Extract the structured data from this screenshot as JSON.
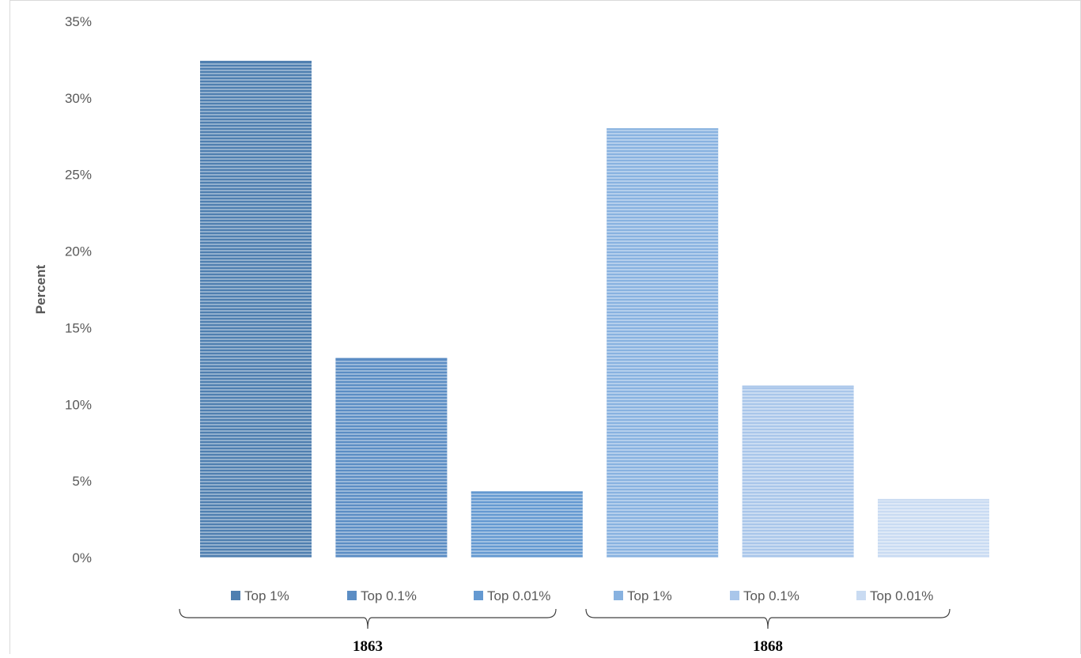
{
  "chart_data": {
    "type": "bar",
    "title": "",
    "xlabel": "",
    "ylabel": "Percent",
    "ylim": [
      0,
      35
    ],
    "yticks": [
      "0%",
      "5%",
      "10%",
      "15%",
      "20%",
      "25%",
      "30%",
      "35%"
    ],
    "grid": false,
    "legend_position": "bottom",
    "series": [
      {
        "name": "Top 1%",
        "group": "1863",
        "value": 32.4,
        "color": "#4f7fb0"
      },
      {
        "name": "Top 0.1%",
        "group": "1863",
        "value": 13.0,
        "color": "#5b8dc4"
      },
      {
        "name": "Top 0.01%",
        "group": "1863",
        "value": 4.3,
        "color": "#6499d1"
      },
      {
        "name": "Top 1%",
        "group": "1868",
        "value": 28.0,
        "color": "#88b2e0"
      },
      {
        "name": "Top 0.1%",
        "group": "1868",
        "value": 11.2,
        "color": "#a9c6ea"
      },
      {
        "name": "Top 0.01%",
        "group": "1868",
        "value": 3.8,
        "color": "#c9dbf2"
      }
    ],
    "groups": [
      "1863",
      "1868"
    ]
  }
}
